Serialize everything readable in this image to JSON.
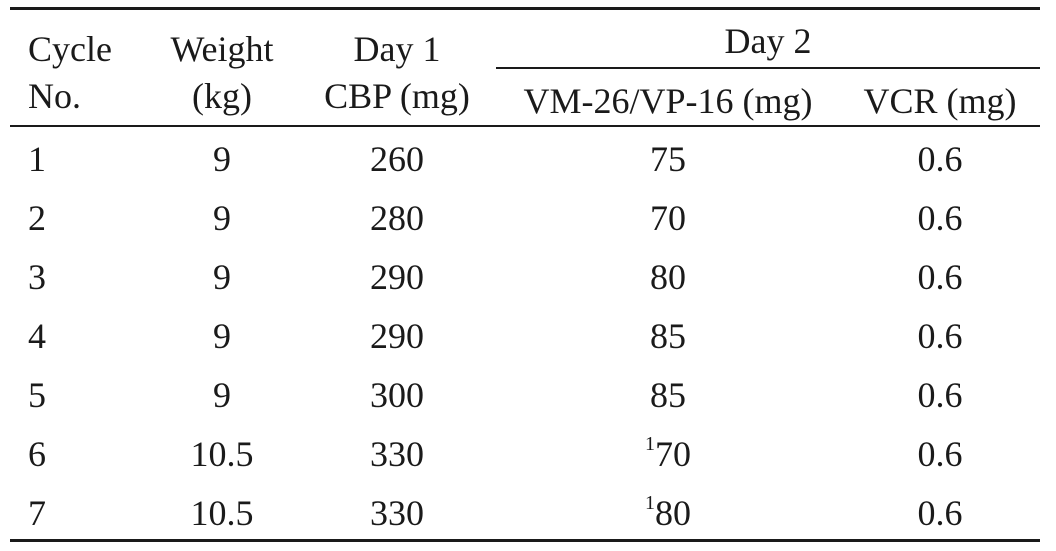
{
  "table": {
    "headers": {
      "cycle_line1": "Cycle",
      "cycle_line2": "No.",
      "weight_line1": "Weight",
      "weight_line2": "(kg)",
      "day1_line1": "Day 1",
      "day1_line2": "CBP (mg)",
      "day2_group": "Day 2",
      "vm26": "VM-26/VP-16 (mg)",
      "vcr": "VCR (mg)"
    },
    "rows": [
      {
        "cycle": "1",
        "weight": "9",
        "cbp": "260",
        "vm_note": "",
        "vm": "75",
        "vcr": "0.6"
      },
      {
        "cycle": "2",
        "weight": "9",
        "cbp": "280",
        "vm_note": "",
        "vm": "70",
        "vcr": "0.6"
      },
      {
        "cycle": "3",
        "weight": "9",
        "cbp": "290",
        "vm_note": "",
        "vm": "80",
        "vcr": "0.6"
      },
      {
        "cycle": "4",
        "weight": "9",
        "cbp": "290",
        "vm_note": "",
        "vm": "85",
        "vcr": "0.6"
      },
      {
        "cycle": "5",
        "weight": "9",
        "cbp": "300",
        "vm_note": "",
        "vm": "85",
        "vcr": "0.6"
      },
      {
        "cycle": "6",
        "weight": "10.5",
        "cbp": "330",
        "vm_note": "1",
        "vm": "70",
        "vcr": "0.6"
      },
      {
        "cycle": "7",
        "weight": "10.5",
        "cbp": "330",
        "vm_note": "1",
        "vm": "80",
        "vcr": "0.6"
      }
    ]
  }
}
